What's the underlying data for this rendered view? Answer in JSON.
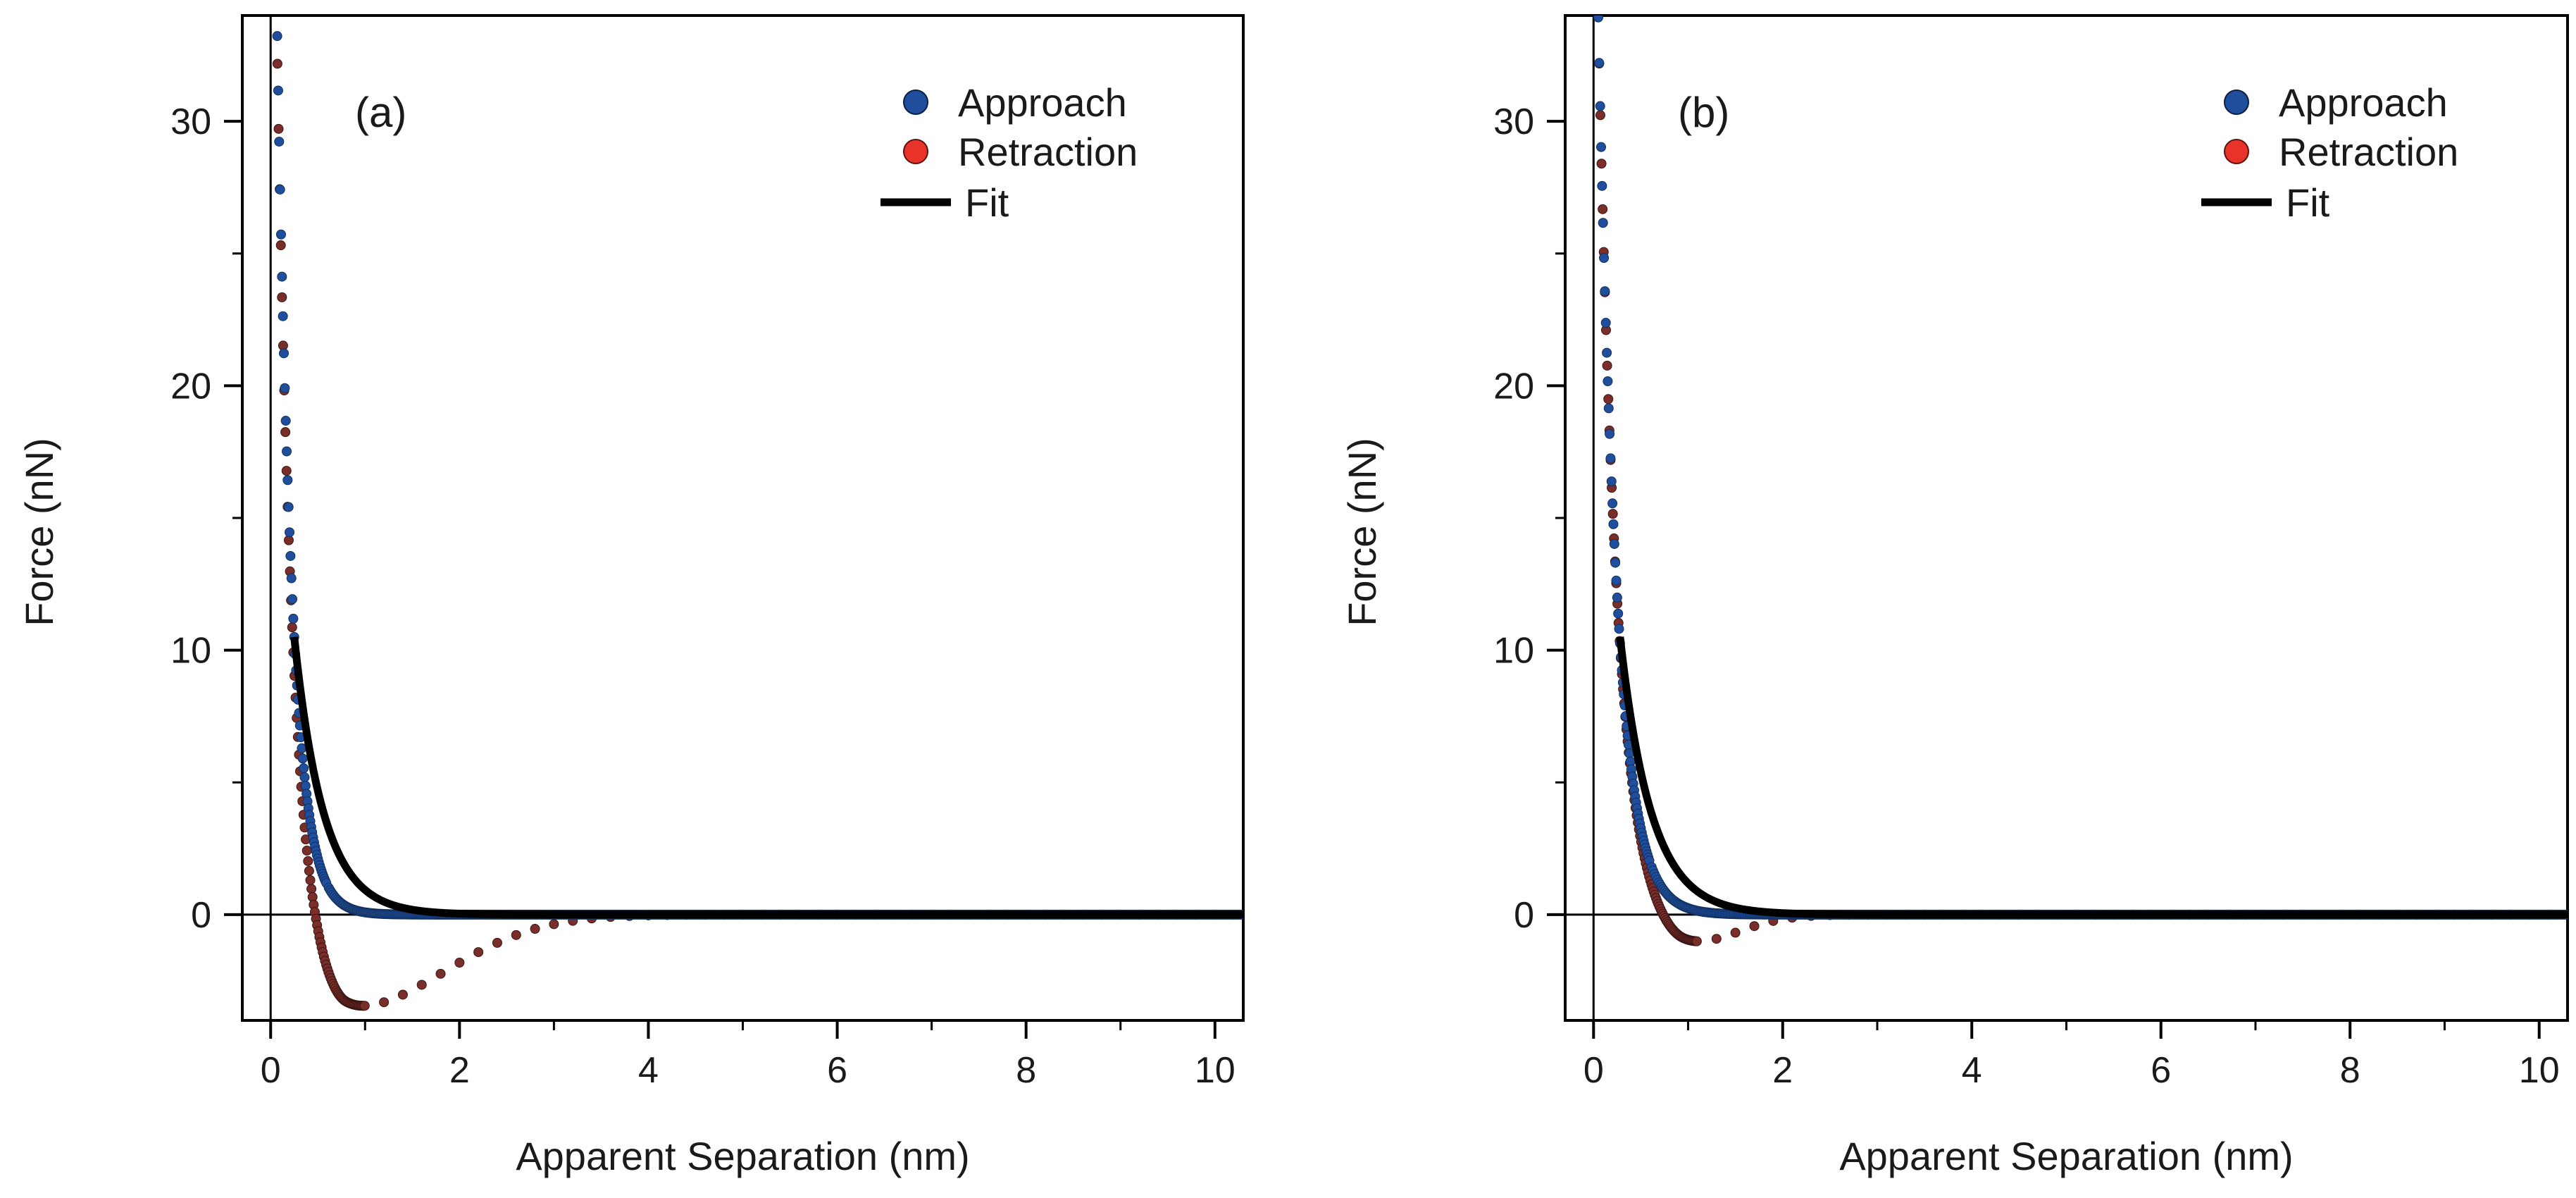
{
  "chart_data": [
    {
      "type": "scatter",
      "panel_label": "(a)",
      "xlabel": "Apparent Separation (nm)",
      "ylabel": "Force (nN)",
      "xlim": [
        -0.3,
        10.3
      ],
      "ylim": [
        -4.0,
        34.0
      ],
      "xticks": [
        "0",
        "2",
        "4",
        "6",
        "8",
        "10"
      ],
      "yticks": [
        "0",
        "10",
        "20",
        "30"
      ],
      "legend_position": "top-right",
      "legend": [
        "Approach",
        "Retraction",
        "Fit"
      ],
      "series": [
        {
          "name": "Approach",
          "color": "#1f4e9c",
          "marker": "circle",
          "model": {
            "A": 52.0,
            "k": 6.4,
            "h0": 0.0,
            "x_start": 0.0,
            "x_end": 10.3,
            "dense_until": 0.6,
            "dense_step": 0.01,
            "sparse_step": 0.015
          }
        },
        {
          "name": "Retraction",
          "color": "#7a2e2a",
          "marker": "circle",
          "model": {
            "A": 52.0,
            "k": 6.4,
            "h0": 0.0,
            "adh": 3.6,
            "x_min": 0.8,
            "w_left": 0.55,
            "w_right": 1.45,
            "x_start": 0.0,
            "x_end": 10.3,
            "dense_until": 1.0,
            "dense_step": 0.012,
            "sparse_step": 0.2
          }
        },
        {
          "name": "Fit",
          "color": "#000000",
          "line": "solid",
          "model": {
            "A": 10.5,
            "decay": 0.31,
            "x0": 0.25,
            "x_start": 0.25,
            "x_end": 10.3
          }
        }
      ]
    },
    {
      "type": "scatter",
      "panel_label": "(b)",
      "xlabel": "Apparent Separation (nm)",
      "ylabel": "Force (nN)",
      "xlim": [
        -0.3,
        10.3
      ],
      "ylim": [
        -4.0,
        34.0
      ],
      "xticks": [
        "0",
        "2",
        "4",
        "6",
        "8",
        "10"
      ],
      "yticks": [
        "0",
        "10",
        "20",
        "30"
      ],
      "legend_position": "top-right",
      "legend": [
        "Approach",
        "Retraction",
        "Fit"
      ],
      "series": [
        {
          "name": "Approach",
          "color": "#1f4e9c",
          "marker": "circle",
          "model": {
            "A": 44.0,
            "k": 5.2,
            "h0": 0.0,
            "x_start": 0.0,
            "x_end": 10.3,
            "dense_until": 0.6,
            "dense_step": 0.01,
            "sparse_step": 0.015
          }
        },
        {
          "name": "Retraction",
          "color": "#7a2e2a",
          "marker": "circle",
          "model": {
            "A": 44.0,
            "k": 5.2,
            "h0": 0.0,
            "adh": 1.2,
            "x_min": 0.95,
            "w_left": 0.45,
            "w_right": 0.75,
            "x_start": 0.0,
            "x_end": 10.3,
            "dense_until": 1.1,
            "dense_step": 0.012,
            "sparse_step": 0.2
          }
        },
        {
          "name": "Fit",
          "color": "#000000",
          "line": "solid",
          "model": {
            "A": 10.5,
            "decay": 0.33,
            "x0": 0.28,
            "x_start": 0.28,
            "x_end": 10.3
          }
        }
      ]
    }
  ]
}
